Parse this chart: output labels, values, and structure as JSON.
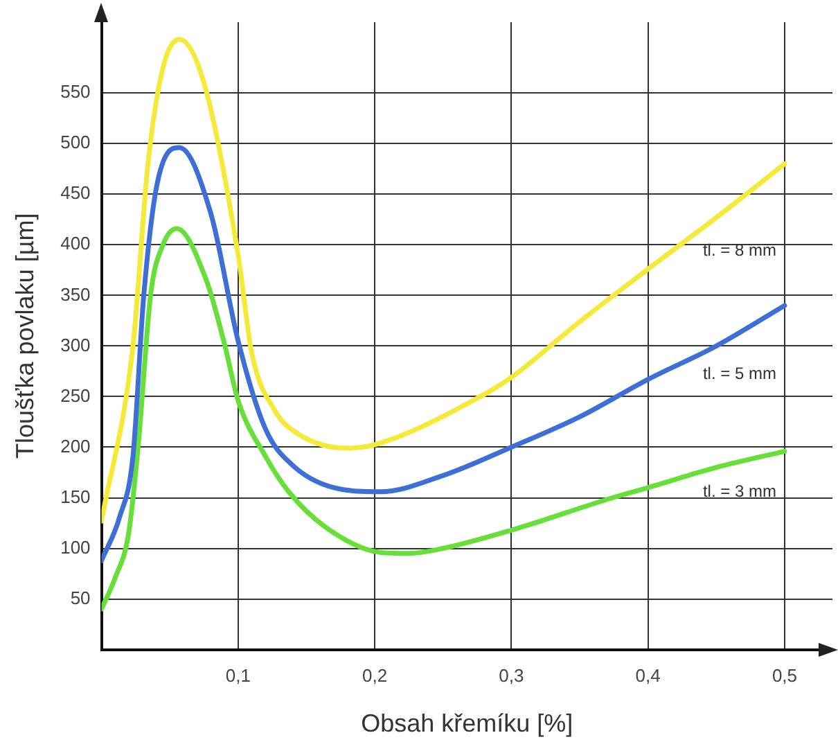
{
  "chart_data": {
    "type": "line",
    "xlabel": "Obsah křemíku [%]",
    "ylabel": "Tloušťka povlaku [µm]",
    "xlim": [
      0,
      0.535
    ],
    "ylim": [
      0,
      620
    ],
    "xticks": [
      {
        "value": 0.1,
        "label": "0,1"
      },
      {
        "value": 0.2,
        "label": "0,2"
      },
      {
        "value": 0.3,
        "label": "0,3"
      },
      {
        "value": 0.4,
        "label": "0,4"
      },
      {
        "value": 0.5,
        "label": "0,5"
      }
    ],
    "yticks": [
      50,
      100,
      150,
      200,
      250,
      300,
      350,
      400,
      450,
      500,
      550
    ],
    "grid": true,
    "legend": false,
    "marker": "none",
    "line_style": "solid",
    "series": [
      {
        "name": "tl. = 8 mm",
        "color": "#f5ea3a",
        "x": [
          0,
          0.023,
          0.034,
          0.045,
          0.057,
          0.075,
          0.1,
          0.11,
          0.127,
          0.144,
          0.18,
          0.204,
          0.276,
          0.3,
          0.35,
          0.4,
          0.45,
          0.5
        ],
        "values": [
          127,
          300,
          480,
          575,
          603,
          560,
          390,
          293,
          236,
          213,
          199,
          204,
          249,
          269,
          324,
          376,
          427,
          480
        ]
      },
      {
        "name": "tl. = 5 mm",
        "color": "#3e6fd6",
        "x": [
          0,
          0.013,
          0.023,
          0.031,
          0.041,
          0.057,
          0.08,
          0.1,
          0.12,
          0.14,
          0.17,
          0.204,
          0.25,
          0.3,
          0.35,
          0.4,
          0.45,
          0.5
        ],
        "values": [
          88,
          130,
          191,
          351,
          462,
          496,
          431,
          305,
          218,
          182,
          160,
          156,
          172,
          200,
          230,
          267,
          300,
          340
        ]
      },
      {
        "name": "tl. = 3 mm",
        "color": "#66df38",
        "x": [
          0,
          0.01,
          0.02,
          0.027,
          0.036,
          0.045,
          0.055,
          0.077,
          0.09,
          0.1,
          0.12,
          0.137,
          0.165,
          0.204,
          0.225,
          0.25,
          0.3,
          0.374,
          0.4,
          0.45,
          0.5
        ],
        "values": [
          40,
          71,
          116,
          204,
          351,
          400,
          416,
          364,
          302,
          246,
          191,
          156,
          120,
          96,
          95,
          100,
          118,
          150,
          160,
          180,
          196
        ]
      }
    ]
  }
}
